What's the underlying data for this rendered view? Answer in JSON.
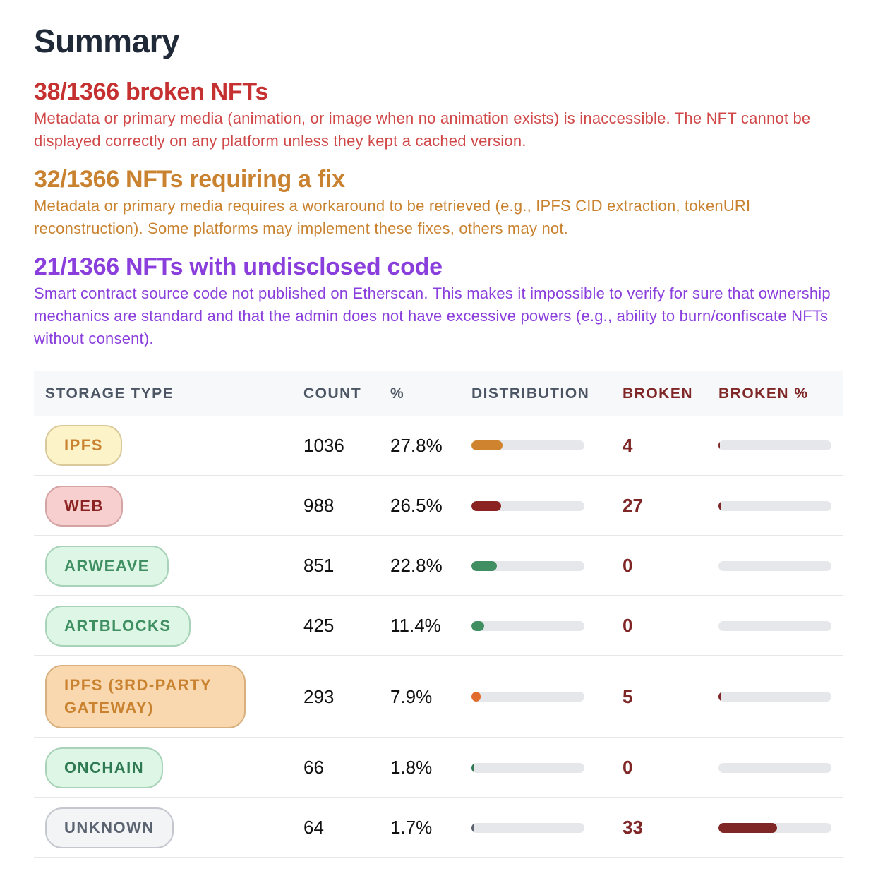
{
  "title": "Summary",
  "sections": [
    {
      "heading": "38/1366 broken NFTs",
      "text": "Metadata or primary media (animation, or image when no animation exists) is inaccessible. The NFT cannot be displayed correctly on any platform unless they kept a cached version.",
      "color": "#c53030"
    },
    {
      "heading": "32/1366 NFTs requiring a fix",
      "text": "Metadata or primary media requires a workaround to be retrieved (e.g., IPFS CID extraction, tokenURI reconstruction). Some platforms may implement these fixes, others may not.",
      "color": "#c9822f"
    },
    {
      "heading": "21/1366 NFTs with undisclosed code",
      "text": "Smart contract source code not published on Etherscan. This makes it impossible to verify for sure that ownership mechanics are standard and that the admin does not have excessive powers (e.g., ability to burn/confiscate NFTs without consent).",
      "color": "#8a3fdc"
    }
  ],
  "table": {
    "headers": [
      "STORAGE TYPE",
      "COUNT",
      "%",
      "DISTRIBUTION",
      "BROKEN",
      "BROKEN %"
    ],
    "broken_color": "#7f2626",
    "rows": [
      {
        "type": "IPFS",
        "count": "1036",
        "pct": "27.8%",
        "dist": 27.8,
        "broken": "4",
        "broken_pct": 0.4,
        "fg": "#c9822f",
        "bg": "#fdf3c8",
        "border": "#d9c99a",
        "bar": "#d0832f"
      },
      {
        "type": "WEB",
        "count": "988",
        "pct": "26.5%",
        "dist": 26.5,
        "broken": "27",
        "broken_pct": 2.7,
        "fg": "#8b2323",
        "bg": "#f7cfcf",
        "border": "#d4a3a3",
        "bar": "#8b2323"
      },
      {
        "type": "ARWEAVE",
        "count": "851",
        "pct": "22.8%",
        "dist": 22.8,
        "broken": "0",
        "broken_pct": 0,
        "fg": "#3f8f62",
        "bg": "#ddf6e6",
        "border": "#a9d3b9",
        "bar": "#3f8f62"
      },
      {
        "type": "ARTBLOCKS",
        "count": "425",
        "pct": "11.4%",
        "dist": 11.4,
        "broken": "0",
        "broken_pct": 0,
        "fg": "#3f8f62",
        "bg": "#ddf6e6",
        "border": "#a9d3b9",
        "bar": "#3f8f62"
      },
      {
        "type": "IPFS (3RD-PARTY GATEWAY)",
        "count": "293",
        "pct": "7.9%",
        "dist": 7.9,
        "broken": "5",
        "broken_pct": 1.7,
        "fg": "#c9822f",
        "bg": "#f9d8b0",
        "border": "#d8b07e",
        "bar": "#e06b2c"
      },
      {
        "type": "ONCHAIN",
        "count": "66",
        "pct": "1.8%",
        "dist": 1.8,
        "broken": "0",
        "broken_pct": 0,
        "fg": "#2f7a52",
        "bg": "#ddf6e6",
        "border": "#a9d3b9",
        "bar": "#2f7a52"
      },
      {
        "type": "UNKNOWN",
        "count": "64",
        "pct": "1.7%",
        "dist": 1.7,
        "broken": "33",
        "broken_pct": 51.6,
        "fg": "#5b6370",
        "bg": "#f3f4f6",
        "border": "#c4c8ce",
        "bar": "#5b6370"
      }
    ]
  }
}
